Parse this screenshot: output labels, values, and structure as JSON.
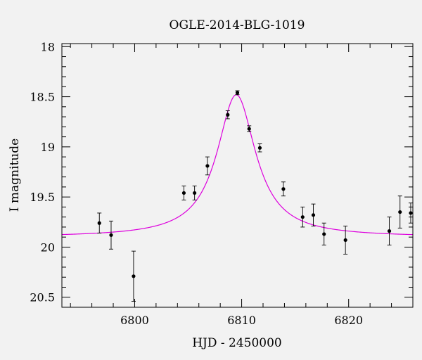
{
  "chart_data": {
    "type": "scatter",
    "title": "OGLE-2014-BLG-1019",
    "xlabel": "HJD - 2450000",
    "ylabel": "I magnitude",
    "xlim": [
      6793.2,
      6826.0
    ],
    "ylim": [
      20.6,
      17.97
    ],
    "y_inverted": true,
    "x_ticks": [
      6800,
      6810,
      6820
    ],
    "x_tick_labels": [
      "6800",
      "6810",
      "6820"
    ],
    "y_ticks": [
      18,
      18.5,
      19,
      19.5,
      20,
      20.5
    ],
    "y_tick_labels": [
      "18",
      "18.5",
      "19",
      "19.5",
      "20",
      "20.5"
    ],
    "grid": false,
    "colors": {
      "model": "#dd00dd",
      "points": "#000000",
      "background": "#f2f2f2"
    },
    "model": {
      "name": "",
      "t0": 6809.5,
      "baseline_mag": 19.9,
      "peak_mag": 18.48,
      "width": 2.2
    },
    "series": [
      {
        "name": "",
        "points": [
          {
            "x": 6796.7,
            "y": 19.76,
            "err": 0.1
          },
          {
            "x": 6797.8,
            "y": 19.88,
            "err": 0.14
          },
          {
            "x": 6799.9,
            "y": 20.29,
            "err": 0.25
          },
          {
            "x": 6804.6,
            "y": 19.46,
            "err": 0.07
          },
          {
            "x": 6805.6,
            "y": 19.46,
            "err": 0.07
          },
          {
            "x": 6806.8,
            "y": 19.19,
            "err": 0.09
          },
          {
            "x": 6808.7,
            "y": 18.68,
            "err": 0.04
          },
          {
            "x": 6809.6,
            "y": 18.46,
            "err": 0.02
          },
          {
            "x": 6810.7,
            "y": 18.82,
            "err": 0.03
          },
          {
            "x": 6811.7,
            "y": 19.01,
            "err": 0.04
          },
          {
            "x": 6813.9,
            "y": 19.42,
            "err": 0.07
          },
          {
            "x": 6815.7,
            "y": 19.7,
            "err": 0.1
          },
          {
            "x": 6816.7,
            "y": 19.68,
            "err": 0.11
          },
          {
            "x": 6817.7,
            "y": 19.87,
            "err": 0.11
          },
          {
            "x": 6819.7,
            "y": 19.93,
            "err": 0.14
          },
          {
            "x": 6823.8,
            "y": 19.84,
            "err": 0.14
          },
          {
            "x": 6824.8,
            "y": 19.65,
            "err": 0.16
          },
          {
            "x": 6825.8,
            "y": 19.66,
            "err": 0.1
          }
        ]
      }
    ]
  }
}
